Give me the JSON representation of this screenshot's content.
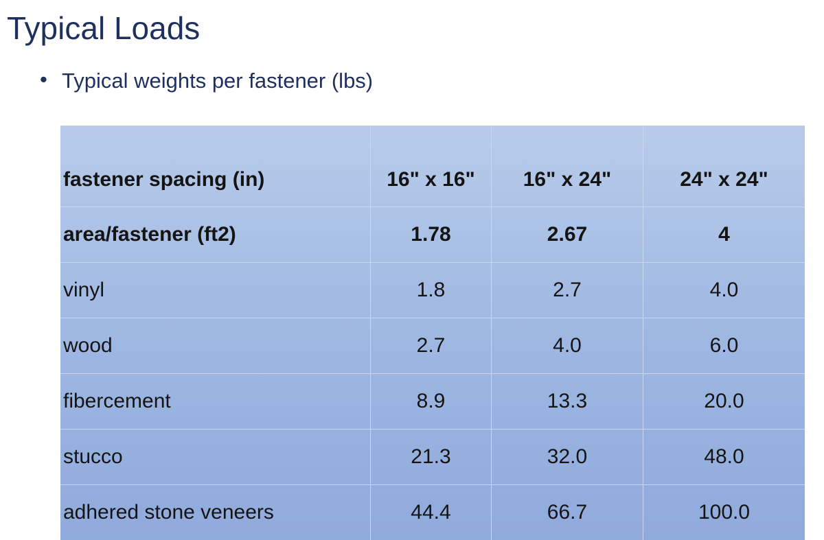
{
  "title": "Typical Loads",
  "bullets": [
    "Typical weights per fastener (lbs)"
  ],
  "table": {
    "header": [
      "fastener spacing (in)",
      "16\" x 16\"",
      "16\" x 24\"",
      "24\" x 24\""
    ],
    "rows": [
      [
        "area/fastener (ft2)",
        "1.78",
        "2.67",
        "4"
      ],
      [
        "vinyl",
        "1.8",
        "2.7",
        "4.0"
      ],
      [
        "wood",
        "2.7",
        "4.0",
        "6.0"
      ],
      [
        "fibercement",
        "8.9",
        "13.3",
        "20.0"
      ],
      [
        "stucco",
        "21.3",
        "32.0",
        "48.0"
      ],
      [
        "adhered stone veneers",
        "44.4",
        "66.7",
        "100.0"
      ]
    ]
  }
}
